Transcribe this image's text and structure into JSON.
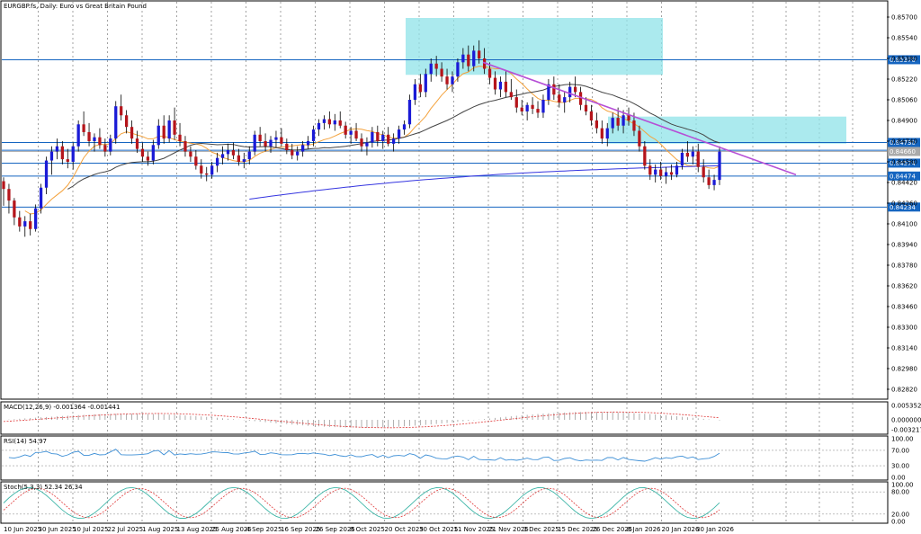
{
  "chart_data": {
    "type": "candlestick",
    "title": "EURGBP.fs, Daily: Euro vs Great Britain Pound",
    "y_range": [
      0.8505,
      0.859
    ],
    "y_ticks": [
      "0.85700",
      "0.85540",
      "0.85380",
      "0.85220",
      "0.85060",
      "0.84900",
      "0.84740",
      "0.84580",
      "0.84420",
      "0.84260",
      "0.84100",
      "0.83940",
      "0.83780",
      "0.83620",
      "0.83460",
      "0.83300",
      "0.83140",
      "0.82980",
      "0.82820"
    ],
    "y_tick_values": [
      0.857,
      0.8554,
      0.8538,
      0.8522,
      0.8506,
      0.849,
      0.8474,
      0.8458,
      0.8442,
      0.8426,
      0.841,
      0.8394,
      0.8378,
      0.8362,
      0.8346,
      0.833,
      0.8314,
      0.8298,
      0.8282
    ],
    "x_labels": [
      "10 Jun 2025",
      "30 Jun 2025",
      "10 Jul 2025",
      "22 Jul 2025",
      "1 Aug 2025",
      "13 Aug 2025",
      "25 Aug 2025",
      "4 Sep 2025",
      "16 Sep 2025",
      "26 Sep 2025",
      "8 Oct 2025",
      "20 Oct 2025",
      "30 Oct 2025",
      "11 Nov 2025",
      "21 Nov 2025",
      "3 Dec 2025",
      "15 Dec 2025",
      "26 Dec 2025",
      "8 Jan 2026",
      "20 Jan 2026",
      "30 Jan 2026"
    ],
    "levels": [
      {
        "value": 0.8537,
        "label": "0.85370"
      },
      {
        "value": 0.8473,
        "label": "0.84730"
      },
      {
        "value": 0.8467,
        "label": "0.84674"
      },
      {
        "value": 0.8457,
        "label": "0.84574"
      },
      {
        "value": 0.8447,
        "label": "0.84474"
      },
      {
        "value": 0.8423,
        "label": "0.84234"
      }
    ],
    "current_price": {
      "value": 0.8466,
      "label": "0.84660"
    },
    "candles": [
      [
        0.8443,
        0.8446,
        0.8424,
        0.8437
      ],
      [
        0.8437,
        0.8441,
        0.8418,
        0.8428
      ],
      [
        0.8428,
        0.843,
        0.8409,
        0.8415
      ],
      [
        0.8415,
        0.842,
        0.8404,
        0.8408
      ],
      [
        0.8408,
        0.8416,
        0.84,
        0.8412
      ],
      [
        0.8412,
        0.8418,
        0.8401,
        0.8406
      ],
      [
        0.8406,
        0.8425,
        0.8404,
        0.8422
      ],
      [
        0.8422,
        0.8441,
        0.8418,
        0.8438
      ],
      [
        0.8438,
        0.8462,
        0.8433,
        0.8459
      ],
      [
        0.8459,
        0.847,
        0.8448,
        0.8466
      ],
      [
        0.8466,
        0.8476,
        0.846,
        0.847
      ],
      [
        0.847,
        0.8474,
        0.8456,
        0.846
      ],
      [
        0.846,
        0.8468,
        0.8453,
        0.8458
      ],
      [
        0.8458,
        0.8473,
        0.8452,
        0.847
      ],
      [
        0.847,
        0.849,
        0.8466,
        0.8487
      ],
      [
        0.8487,
        0.8497,
        0.8478,
        0.8481
      ],
      [
        0.8481,
        0.8488,
        0.847,
        0.8474
      ],
      [
        0.8474,
        0.848,
        0.8466,
        0.8477
      ],
      [
        0.8477,
        0.8484,
        0.8468,
        0.8471
      ],
      [
        0.8471,
        0.8476,
        0.8462,
        0.8466
      ],
      [
        0.8466,
        0.8479,
        0.8463,
        0.8476
      ],
      [
        0.8476,
        0.8505,
        0.8472,
        0.8501
      ],
      [
        0.8501,
        0.851,
        0.849,
        0.8494
      ],
      [
        0.8494,
        0.8498,
        0.848,
        0.8485
      ],
      [
        0.8485,
        0.849,
        0.8472,
        0.8476
      ],
      [
        0.8476,
        0.8482,
        0.8465,
        0.8468
      ],
      [
        0.8468,
        0.8473,
        0.8458,
        0.8462
      ],
      [
        0.8462,
        0.8466,
        0.8455,
        0.8459
      ],
      [
        0.8459,
        0.8475,
        0.8456,
        0.8471
      ],
      [
        0.8471,
        0.8491,
        0.8468,
        0.8486
      ],
      [
        0.8486,
        0.8494,
        0.8472,
        0.8476
      ],
      [
        0.8476,
        0.8494,
        0.8473,
        0.849
      ],
      [
        0.849,
        0.85,
        0.8475,
        0.8479
      ],
      [
        0.8479,
        0.8488,
        0.847,
        0.8474
      ],
      [
        0.8474,
        0.8478,
        0.8462,
        0.8466
      ],
      [
        0.8466,
        0.847,
        0.8458,
        0.8462
      ],
      [
        0.8462,
        0.8467,
        0.8452,
        0.8455
      ],
      [
        0.8455,
        0.846,
        0.8445,
        0.8449
      ],
      [
        0.8449,
        0.8454,
        0.8443,
        0.8448
      ],
      [
        0.8448,
        0.8458,
        0.8445,
        0.8455
      ],
      [
        0.8455,
        0.8465,
        0.845,
        0.8461
      ],
      [
        0.8461,
        0.847,
        0.8456,
        0.8464
      ],
      [
        0.8464,
        0.8472,
        0.8459,
        0.8467
      ],
      [
        0.8467,
        0.8473,
        0.846,
        0.8463
      ],
      [
        0.8463,
        0.8468,
        0.8455,
        0.8458
      ],
      [
        0.8458,
        0.8465,
        0.8453,
        0.846
      ],
      [
        0.846,
        0.847,
        0.8456,
        0.8466
      ],
      [
        0.8466,
        0.8482,
        0.8463,
        0.8479
      ],
      [
        0.8479,
        0.8485,
        0.847,
        0.8474
      ],
      [
        0.8474,
        0.848,
        0.8466,
        0.847
      ],
      [
        0.847,
        0.8478,
        0.8465,
        0.8475
      ],
      [
        0.8475,
        0.8482,
        0.8469,
        0.8477
      ],
      [
        0.8477,
        0.8484,
        0.847,
        0.8472
      ],
      [
        0.8472,
        0.8476,
        0.8464,
        0.8467
      ],
      [
        0.8467,
        0.8472,
        0.846,
        0.8463
      ],
      [
        0.8463,
        0.847,
        0.8459,
        0.8466
      ],
      [
        0.8466,
        0.8474,
        0.8462,
        0.8471
      ],
      [
        0.8471,
        0.8478,
        0.8468,
        0.8474
      ],
      [
        0.8474,
        0.8486,
        0.847,
        0.8483
      ],
      [
        0.8483,
        0.8491,
        0.8478,
        0.8488
      ],
      [
        0.8488,
        0.8494,
        0.8483,
        0.8491
      ],
      [
        0.8491,
        0.8497,
        0.8484,
        0.8487
      ],
      [
        0.8487,
        0.8495,
        0.8482,
        0.849
      ],
      [
        0.849,
        0.8497,
        0.8484,
        0.8486
      ],
      [
        0.8486,
        0.8489,
        0.8476,
        0.8479
      ],
      [
        0.8479,
        0.8485,
        0.8472,
        0.8482
      ],
      [
        0.8482,
        0.8488,
        0.8474,
        0.8476
      ],
      [
        0.8476,
        0.848,
        0.8466,
        0.847
      ],
      [
        0.847,
        0.8477,
        0.8463,
        0.8473
      ],
      [
        0.8473,
        0.8485,
        0.8469,
        0.8481
      ],
      [
        0.8481,
        0.8486,
        0.847,
        0.8474
      ],
      [
        0.8474,
        0.8482,
        0.8468,
        0.8479
      ],
      [
        0.8479,
        0.8485,
        0.847,
        0.8472
      ],
      [
        0.8472,
        0.848,
        0.8466,
        0.8476
      ],
      [
        0.8476,
        0.8486,
        0.8472,
        0.8483
      ],
      [
        0.8483,
        0.849,
        0.8479,
        0.8487
      ],
      [
        0.8487,
        0.851,
        0.8484,
        0.8506
      ],
      [
        0.8506,
        0.8522,
        0.8502,
        0.8518
      ],
      [
        0.8518,
        0.8526,
        0.8508,
        0.8512
      ],
      [
        0.8512,
        0.853,
        0.8508,
        0.8526
      ],
      [
        0.8526,
        0.8538,
        0.852,
        0.8534
      ],
      [
        0.8534,
        0.854,
        0.8524,
        0.853
      ],
      [
        0.853,
        0.8535,
        0.852,
        0.8524
      ],
      [
        0.8524,
        0.853,
        0.8514,
        0.8518
      ],
      [
        0.8518,
        0.8528,
        0.8512,
        0.8524
      ],
      [
        0.8524,
        0.8538,
        0.852,
        0.8535
      ],
      [
        0.8535,
        0.8546,
        0.853,
        0.8541
      ],
      [
        0.8541,
        0.8548,
        0.8528,
        0.8532
      ],
      [
        0.8532,
        0.8548,
        0.8528,
        0.8544
      ],
      [
        0.8544,
        0.8552,
        0.8534,
        0.8538
      ],
      [
        0.8538,
        0.8546,
        0.8526,
        0.853
      ],
      [
        0.853,
        0.8535,
        0.8518,
        0.8523
      ],
      [
        0.8523,
        0.8528,
        0.851,
        0.8514
      ],
      [
        0.8514,
        0.8524,
        0.8508,
        0.852
      ],
      [
        0.852,
        0.8528,
        0.8508,
        0.8512
      ],
      [
        0.8512,
        0.8522,
        0.8506,
        0.8508
      ],
      [
        0.8508,
        0.8514,
        0.8496,
        0.85
      ],
      [
        0.85,
        0.8506,
        0.8494,
        0.8497
      ],
      [
        0.8497,
        0.8504,
        0.849,
        0.8502
      ],
      [
        0.8502,
        0.8508,
        0.8495,
        0.8499
      ],
      [
        0.8499,
        0.8505,
        0.8492,
        0.8496
      ],
      [
        0.8496,
        0.851,
        0.8492,
        0.8506
      ],
      [
        0.8506,
        0.8522,
        0.8502,
        0.8518
      ],
      [
        0.8518,
        0.8524,
        0.8506,
        0.851
      ],
      [
        0.851,
        0.8518,
        0.85,
        0.8504
      ],
      [
        0.8504,
        0.8512,
        0.8496,
        0.8508
      ],
      [
        0.8508,
        0.852,
        0.8504,
        0.8516
      ],
      [
        0.8516,
        0.8524,
        0.8508,
        0.8512
      ],
      [
        0.8512,
        0.8516,
        0.8498,
        0.8502
      ],
      [
        0.8502,
        0.8508,
        0.8494,
        0.8497
      ],
      [
        0.8497,
        0.8502,
        0.8486,
        0.849
      ],
      [
        0.849,
        0.8496,
        0.848,
        0.8484
      ],
      [
        0.8484,
        0.849,
        0.8472,
        0.8476
      ],
      [
        0.8476,
        0.8488,
        0.847,
        0.8484
      ],
      [
        0.8484,
        0.8496,
        0.848,
        0.8492
      ],
      [
        0.8492,
        0.85,
        0.8482,
        0.8486
      ],
      [
        0.8486,
        0.8498,
        0.848,
        0.8494
      ],
      [
        0.8494,
        0.85,
        0.8486,
        0.849
      ],
      [
        0.849,
        0.8496,
        0.8478,
        0.8482
      ],
      [
        0.8482,
        0.8486,
        0.8466,
        0.847
      ],
      [
        0.847,
        0.8474,
        0.8452,
        0.8455
      ],
      [
        0.8455,
        0.846,
        0.8444,
        0.8448
      ],
      [
        0.8448,
        0.8456,
        0.8442,
        0.8452
      ],
      [
        0.8452,
        0.8458,
        0.8444,
        0.8447
      ],
      [
        0.8447,
        0.8454,
        0.8441,
        0.845
      ],
      [
        0.845,
        0.8456,
        0.8444,
        0.8448
      ],
      [
        0.8448,
        0.8458,
        0.8446,
        0.8455
      ],
      [
        0.8455,
        0.8468,
        0.8452,
        0.8465
      ],
      [
        0.8465,
        0.8474,
        0.8458,
        0.8462
      ],
      [
        0.8462,
        0.847,
        0.8456,
        0.8466
      ],
      [
        0.8466,
        0.8472,
        0.845,
        0.8454
      ],
      [
        0.8454,
        0.846,
        0.8442,
        0.8446
      ],
      [
        0.8446,
        0.8452,
        0.8437,
        0.844
      ],
      [
        0.844,
        0.8448,
        0.8436,
        0.8444
      ],
      [
        0.8444,
        0.847,
        0.844,
        0.8466
      ]
    ],
    "subcharts": [
      {
        "name": "MACD(12,26,9) -0.001364 -0.001441",
        "ticks": [
          "0.005352",
          "0.000000",
          "-0.003217"
        ]
      },
      {
        "name": "RSI(14) 54.97",
        "ticks": [
          "100.00",
          "70.00",
          "30.00",
          "0.00"
        ]
      },
      {
        "name": "Stoch(5,3,3) 52.34 26.34",
        "ticks": [
          "100.00",
          "80.00",
          "20.00",
          "0.00"
        ]
      }
    ],
    "colors": {
      "bull": "#1a1ad6",
      "bear": "#b5151b",
      "level": "#1565c0",
      "zone": "#8fe3e8",
      "trendline": "#b64fd6",
      "ma_fast": "#f4a23c",
      "ma_mid": "#444444",
      "ma_slow": "#3535e0",
      "rsi": "#3d8fd6",
      "stoch_main": "#3fb6a8",
      "stoch_signal": "#e03a3a"
    }
  }
}
